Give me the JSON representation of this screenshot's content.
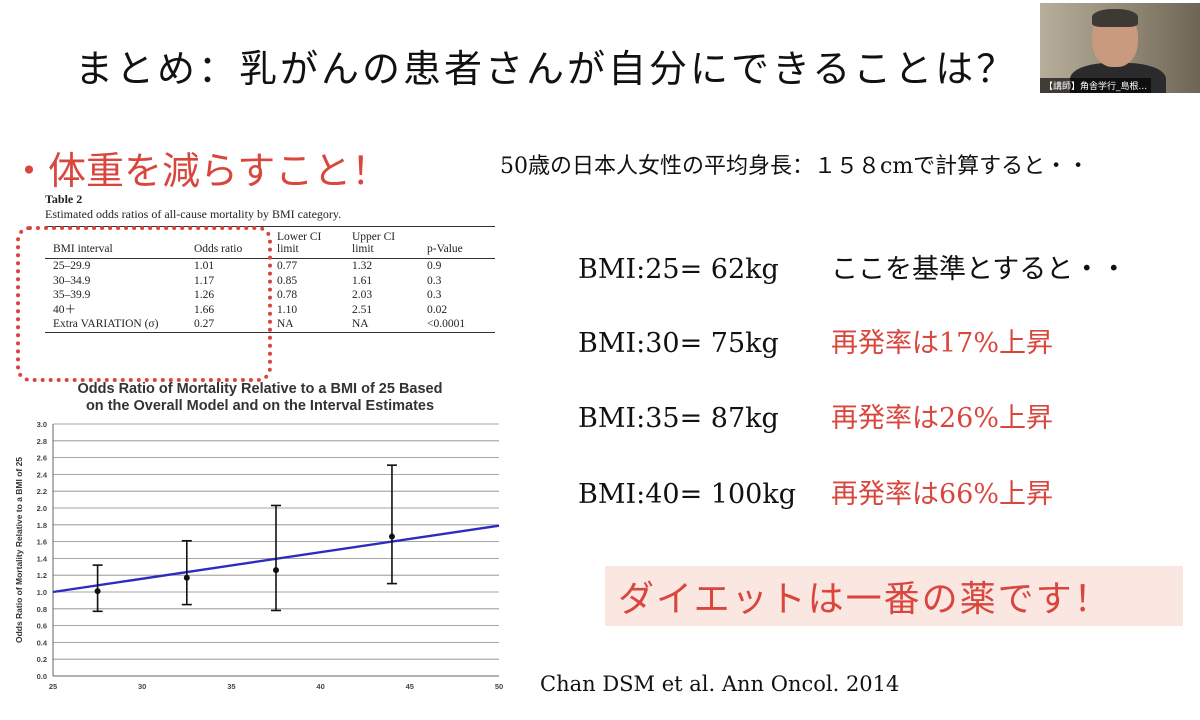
{
  "slide": {
    "title": "まとめ：乳がんの患者さんが自分にできることは？",
    "bullet": "・体重を減らすこと！",
    "height_note": "50歳の日本人女性の平均身長：１５８cmで計算すると・・",
    "speaker_label": "【講師】角舎学行_島根...",
    "bmi_rows": [
      {
        "value": "BMI:25= 62kg",
        "note": "ここを基準とすると・・",
        "highlight": false
      },
      {
        "value": "BMI:30= 75kg",
        "note": "再発率は17%上昇",
        "highlight": true
      },
      {
        "value": "BMI:35= 87kg",
        "note": "再発率は26%上昇",
        "highlight": true
      },
      {
        "value": "BMI:40= 100kg",
        "note": "再発率は66%上昇",
        "highlight": true
      }
    ],
    "diet_message": "ダイエットは一番の薬です！",
    "citation": "Chan DSM et al. Ann Oncol. 2014",
    "accent_color": "#d9463e"
  },
  "table": {
    "title": "Table 2",
    "caption": "Estimated odds ratios of all-cause mortality by BMI category.",
    "headers": [
      "BMI interval",
      "Odds ratio",
      "Lower CI limit",
      "Upper CI limit",
      "p-Value"
    ],
    "rows": [
      [
        "25–29.9",
        "1.01",
        "0.77",
        "1.32",
        "0.9"
      ],
      [
        "30–34.9",
        "1.17",
        "0.85",
        "1.61",
        "0.3"
      ],
      [
        "35–39.9",
        "1.26",
        "0.78",
        "2.03",
        "0.3"
      ],
      [
        "40＋",
        "1.66",
        "1.10",
        "2.51",
        "0.02"
      ],
      [
        "Extra VARIATION (σ)",
        "0.27",
        "NA",
        "NA",
        "<0.0001"
      ]
    ]
  },
  "chart_data": {
    "type": "scatter",
    "title_lines": [
      "Odds Ratio of Mortality Relative to a BMI of 25 Based",
      "on the Overall Model and on the Interval Estimates"
    ],
    "xlabel": "",
    "ylabel": "Odds Ratio of Mortality Relative to a BMI of 25",
    "xlim": [
      25,
      50
    ],
    "ylim": [
      0,
      3.0
    ],
    "x_ticks": [
      25,
      30,
      35,
      40,
      45,
      50
    ],
    "y_ticks": [
      "0.0",
      "0.2",
      "0.4",
      "0.6",
      "0.8",
      "1.0",
      "1.2",
      "1.4",
      "1.6",
      "1.8",
      "2.0",
      "2.2",
      "2.4",
      "2.6",
      "2.8",
      "3.0"
    ],
    "grid": true,
    "line": {
      "x": [
        25,
        50
      ],
      "y": [
        1.0,
        1.79
      ],
      "color": "#2e2bbf"
    },
    "points": [
      {
        "x": 27.5,
        "y": 1.01,
        "lower": 0.77,
        "upper": 1.32
      },
      {
        "x": 32.5,
        "y": 1.17,
        "lower": 0.85,
        "upper": 1.61
      },
      {
        "x": 37.5,
        "y": 1.26,
        "lower": 0.78,
        "upper": 2.03
      },
      {
        "x": 44,
        "y": 1.66,
        "lower": 1.1,
        "upper": 2.51
      }
    ]
  }
}
